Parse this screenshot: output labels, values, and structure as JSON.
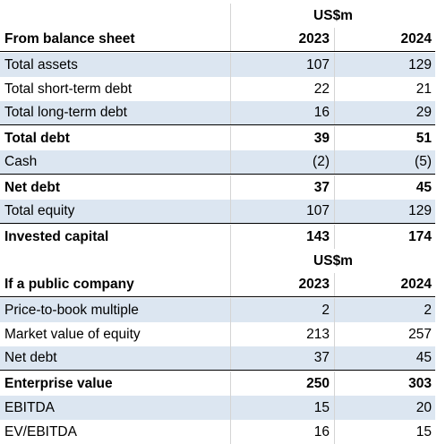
{
  "section1": {
    "unit": "US$m",
    "header": {
      "label": "From balance sheet",
      "y1": "2023",
      "y2": "2024"
    },
    "rows": [
      {
        "label": "Total assets",
        "v1": "107",
        "v2": "129"
      },
      {
        "label": "Total short-term debt",
        "v1": "22",
        "v2": "21"
      },
      {
        "label": "Total long-term debt",
        "v1": "16",
        "v2": "29"
      },
      {
        "label": "Total debt",
        "v1": "39",
        "v2": "51"
      },
      {
        "label": "Cash",
        "v1": "(2)",
        "v2": "(5)"
      },
      {
        "label": "Net debt",
        "v1": "37",
        "v2": "45"
      },
      {
        "label": "Total equity",
        "v1": "107",
        "v2": "129"
      },
      {
        "label": "Invested capital",
        "v1": "143",
        "v2": "174"
      }
    ]
  },
  "section2": {
    "unit": "US$m",
    "header": {
      "label": "If a public company",
      "y1": "2023",
      "y2": "2024"
    },
    "rows": [
      {
        "label": "Price-to-book multiple",
        "v1": "2",
        "v2": "2"
      },
      {
        "label": "Market value of equity",
        "v1": "213",
        "v2": "257"
      },
      {
        "label": "Net debt",
        "v1": "37",
        "v2": "45"
      },
      {
        "label": "Enterprise value",
        "v1": "250",
        "v2": "303"
      },
      {
        "label": "EBITDA",
        "v1": "15",
        "v2": "20"
      },
      {
        "label": "EV/EBITDA",
        "v1": "16",
        "v2": "15"
      }
    ]
  },
  "colors": {
    "shade": "#dce6f1",
    "rule": "#000000"
  }
}
